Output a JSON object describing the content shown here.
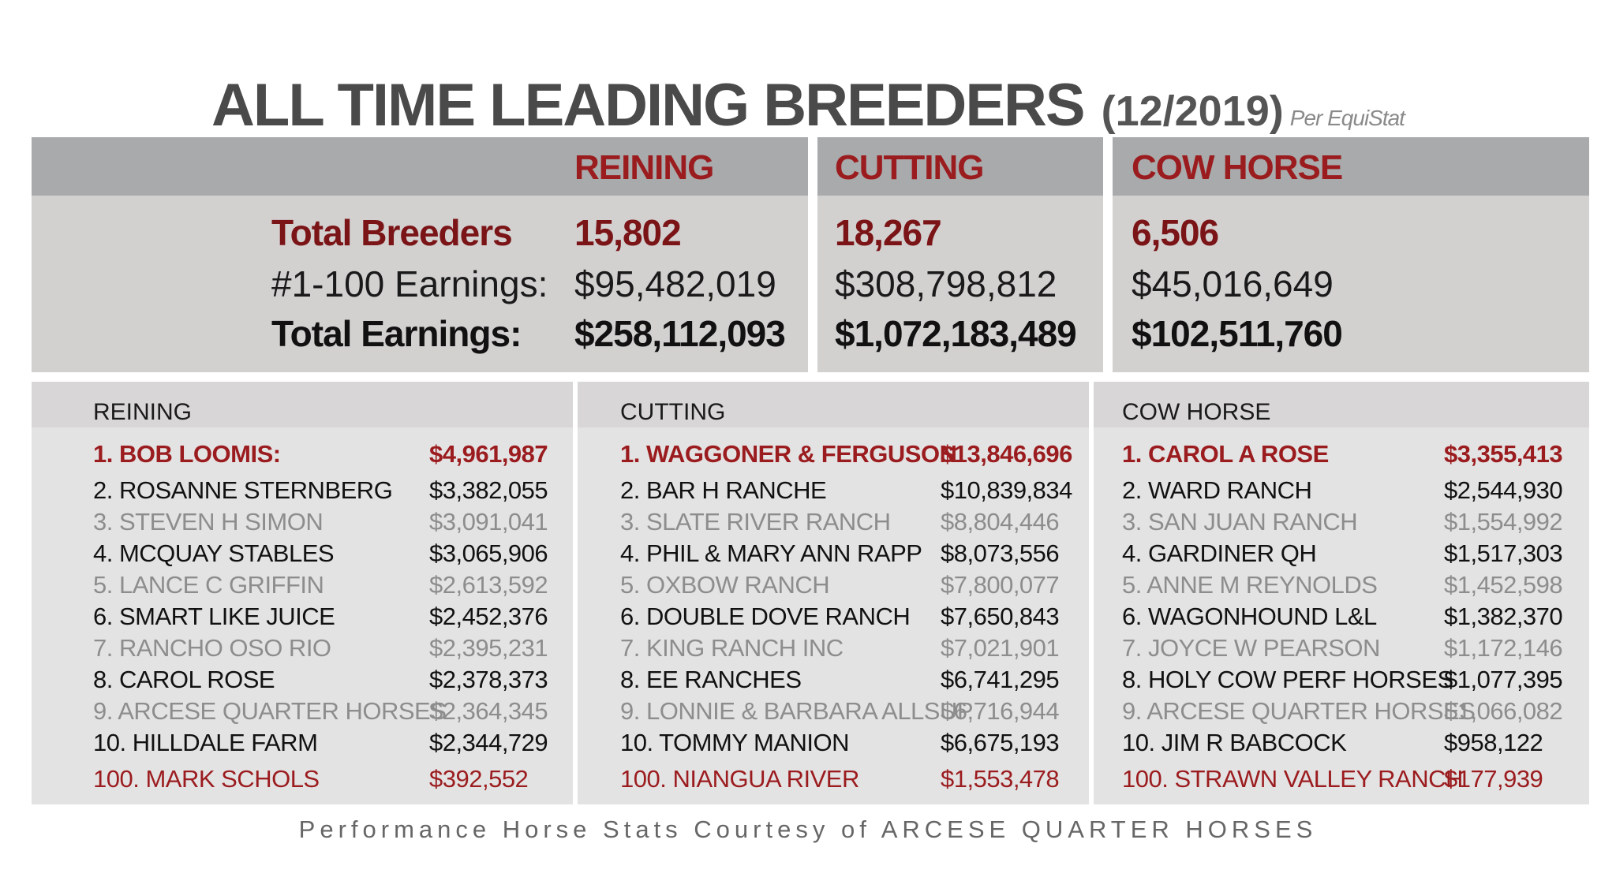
{
  "title": "ALL TIME LEADING BREEDERS",
  "date": "(12/2019)",
  "source": "Per EquiStat",
  "summary": {
    "columns": [
      "REINING",
      "CUTTING",
      "COW HORSE"
    ],
    "rows": [
      {
        "label": "Total Breeders",
        "values": [
          "15,802",
          "18,267",
          "6,506"
        ]
      },
      {
        "label": "#1-100 Earnings:",
        "values": [
          "$95,482,019",
          "$308,798,812",
          "$45,016,649"
        ]
      },
      {
        "label": "Total Earnings:",
        "values": [
          "$258,112,093",
          "$1,072,183,489",
          "$102,511,760"
        ]
      }
    ]
  },
  "rankings": [
    {
      "title": "REINING",
      "entries": [
        {
          "name": "1. BOB LOOMIS:",
          "earnings": "$4,961,987"
        },
        {
          "name": "2. ROSANNE STERNBERG",
          "earnings": "$3,382,055"
        },
        {
          "name": "3. STEVEN H SIMON",
          "earnings": "$3,091,041"
        },
        {
          "name": "4. MCQUAY STABLES",
          "earnings": "$3,065,906"
        },
        {
          "name": "5. LANCE C GRIFFIN",
          "earnings": "$2,613,592"
        },
        {
          "name": "6. SMART LIKE JUICE",
          "earnings": "$2,452,376"
        },
        {
          "name": "7. RANCHO OSO RIO",
          "earnings": "$2,395,231"
        },
        {
          "name": "8. CAROL ROSE",
          "earnings": "$2,378,373"
        },
        {
          "name": "9. ARCESE QUARTER HORSES",
          "earnings": "$2,364,345"
        },
        {
          "name": "10. HILLDALE FARM",
          "earnings": "$2,344,729"
        }
      ],
      "last": {
        "name": "100. MARK SCHOLS",
        "earnings": "$392,552"
      }
    },
    {
      "title": "CUTTING",
      "entries": [
        {
          "name": "1. WAGGONER & FERGUSON",
          "earnings": "$13,846,696"
        },
        {
          "name": "2. BAR H RANCHE",
          "earnings": "$10,839,834"
        },
        {
          "name": "3. SLATE RIVER RANCH",
          "earnings": "$8,804,446"
        },
        {
          "name": "4. PHIL & MARY ANN RAPP",
          "earnings": "$8,073,556"
        },
        {
          "name": "5. OXBOW RANCH",
          "earnings": "$7,800,077"
        },
        {
          "name": "6. DOUBLE DOVE RANCH",
          "earnings": "$7,650,843"
        },
        {
          "name": "7. KING RANCH INC",
          "earnings": "$7,021,901"
        },
        {
          "name": "8. EE RANCHES",
          "earnings": "$6,741,295"
        },
        {
          "name": "9. LONNIE & BARBARA ALLSUP",
          "earnings": "$6,716,944"
        },
        {
          "name": "10. TOMMY MANION",
          "earnings": "$6,675,193"
        }
      ],
      "last": {
        "name": "100. NIANGUA RIVER",
        "earnings": "$1,553,478"
      }
    },
    {
      "title": "COW HORSE",
      "entries": [
        {
          "name": "1. CAROL A ROSE",
          "earnings": "$3,355,413"
        },
        {
          "name": "2. WARD RANCH",
          "earnings": "$2,544,930"
        },
        {
          "name": "3. SAN JUAN RANCH",
          "earnings": "$1,554,992"
        },
        {
          "name": "4. GARDINER QH",
          "earnings": "$1,517,303"
        },
        {
          "name": "5. ANNE M REYNOLDS",
          "earnings": "$1,452,598"
        },
        {
          "name": "6. WAGONHOUND L&L",
          "earnings": "$1,382,370"
        },
        {
          "name": "7. JOYCE W PEARSON",
          "earnings": "$1,172,146"
        },
        {
          "name": "8. HOLY COW PERF HORSES",
          "earnings": "$1,077,395"
        },
        {
          "name": "9. ARCESE QUARTER HORSES",
          "earnings": "$1,066,082"
        },
        {
          "name": "10. JIM R BABCOCK",
          "earnings": "$958,122"
        }
      ],
      "last": {
        "name": "100. STRAWN VALLEY RANCH",
        "earnings": "$177,939"
      }
    }
  ],
  "footer": "Performance Horse Stats Courtesy of ARCESE QUARTER HORSES",
  "colors": {
    "accent": "#9b1c1f",
    "dark_accent": "#7a1416",
    "header_gray": "#a8aaab",
    "panel_gray": "#d3d0d0",
    "muted_text": "#8d8d8d"
  }
}
